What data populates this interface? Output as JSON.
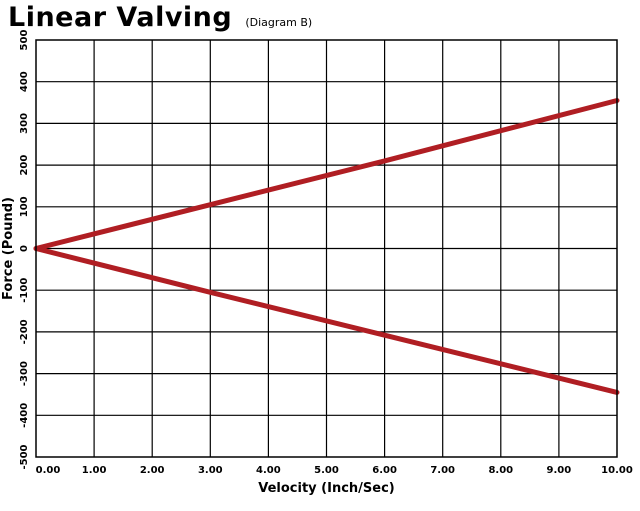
{
  "chart_data": {
    "type": "line",
    "title": "Linear Valving",
    "subtitle": "(Diagram B)",
    "xlabel": "Velocity (Inch/Sec)",
    "ylabel": "Force (Pound)",
    "xlim": [
      0,
      10
    ],
    "ylim": [
      -500,
      500
    ],
    "x_ticks": [
      "0.00",
      "1.00",
      "2.00",
      "3.00",
      "4.00",
      "5.00",
      "6.00",
      "7.00",
      "8.00",
      "9.00",
      "10.00"
    ],
    "y_ticks": [
      "500",
      "400",
      "300",
      "200",
      "100",
      "0",
      "-100",
      "-200",
      "-300",
      "-400",
      "-500"
    ],
    "grid": true,
    "series": [
      {
        "x": [
          0,
          3,
          6,
          10
        ],
        "y": [
          0,
          105,
          210,
          355
        ],
        "color": "#b01e23"
      },
      {
        "x": [
          0,
          3,
          6,
          10
        ],
        "y": [
          0,
          -105,
          -208,
          -345
        ],
        "color": "#b01e23"
      }
    ]
  }
}
